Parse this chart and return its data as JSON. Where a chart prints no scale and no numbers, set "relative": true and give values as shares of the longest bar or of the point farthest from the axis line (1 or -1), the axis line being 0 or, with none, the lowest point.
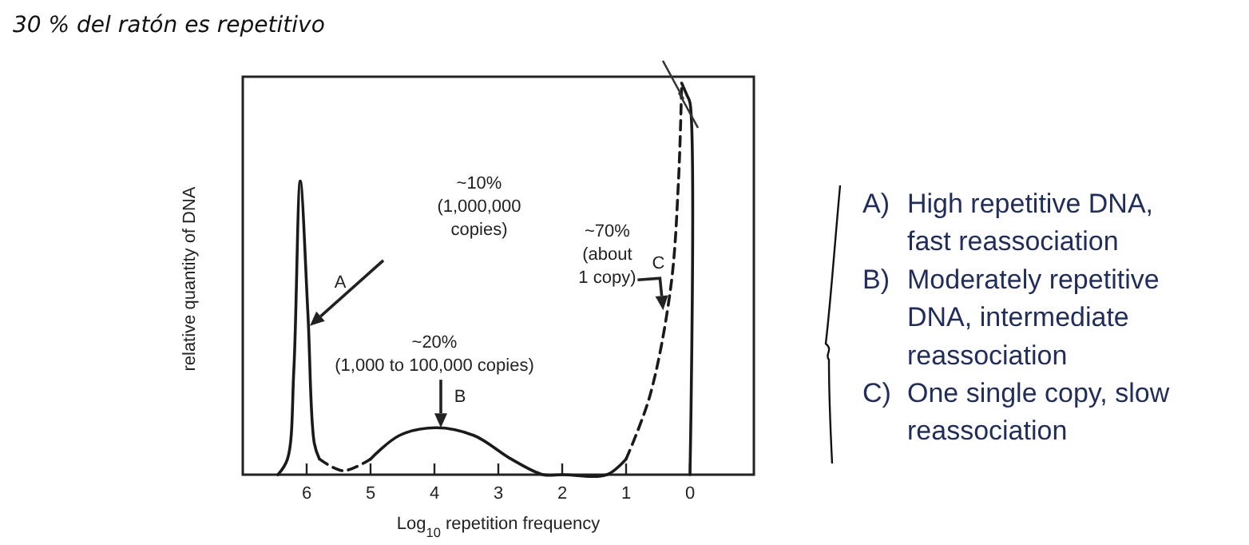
{
  "chart_data": {
    "type": "line",
    "relative": true,
    "xlabel": "Log$_{10}$ repetition frequency",
    "ylabel": "relative quantity of DNA",
    "xlim": [
      7,
      -1
    ],
    "xticks": [
      6,
      5,
      4,
      3,
      2,
      1,
      0
    ],
    "grid": false,
    "marker": "none",
    "color": "#1a1a1a",
    "series": [
      {
        "line_style": "solid",
        "x": [
          6.45,
          6.3,
          6.2,
          6.1,
          5.98,
          5.88,
          5.8
        ],
        "values": [
          0,
          0.04,
          0.27,
          0.75,
          0.41,
          0.08,
          0.04
        ]
      },
      {
        "line_style": "dashed",
        "x": [
          5.8,
          5.43,
          5.0
        ],
        "values": [
          0.04,
          0.01,
          0.04
        ]
      },
      {
        "line_style": "solid",
        "x": [
          5.0,
          4.55,
          3.98,
          3.38,
          2.8,
          2.3,
          2.0,
          1.3,
          1.0
        ],
        "values": [
          0.04,
          0.1,
          0.12,
          0.1,
          0.04,
          0,
          0,
          0,
          0.04
        ]
      },
      {
        "line_style": "dashed",
        "x": [
          1.0,
          0.63,
          0.3,
          0.18,
          0.13
        ],
        "values": [
          0.04,
          0.2,
          0.48,
          0.75,
          1
        ]
      },
      {
        "line_style": "solid",
        "x": [
          0.13,
          0.05,
          0,
          0
        ],
        "values": [
          1,
          0.97,
          0.95,
          0
        ]
      }
    ],
    "annotations": [
      "30 % del ratón es repetitivo",
      "A) High repetitive DNA,\nfast reassociation",
      "B) Moderately repetitive\nDNA, intermediate\nreassociation",
      "C) One single copy, slow\nreassociation",
      "~10%\n(1,000,000\ncopies)",
      "~20%\n(1,000 to 100,000 copies)",
      "~70%\n(about\n1 copy)",
      {
        "text": "A",
        "x": 5.95,
        "y": 0.38
      },
      {
        "text": "B",
        "x": 3.9,
        "y": 0.12
      },
      {
        "text": "C",
        "x": 0.42,
        "y": 0.42
      }
    ]
  }
}
